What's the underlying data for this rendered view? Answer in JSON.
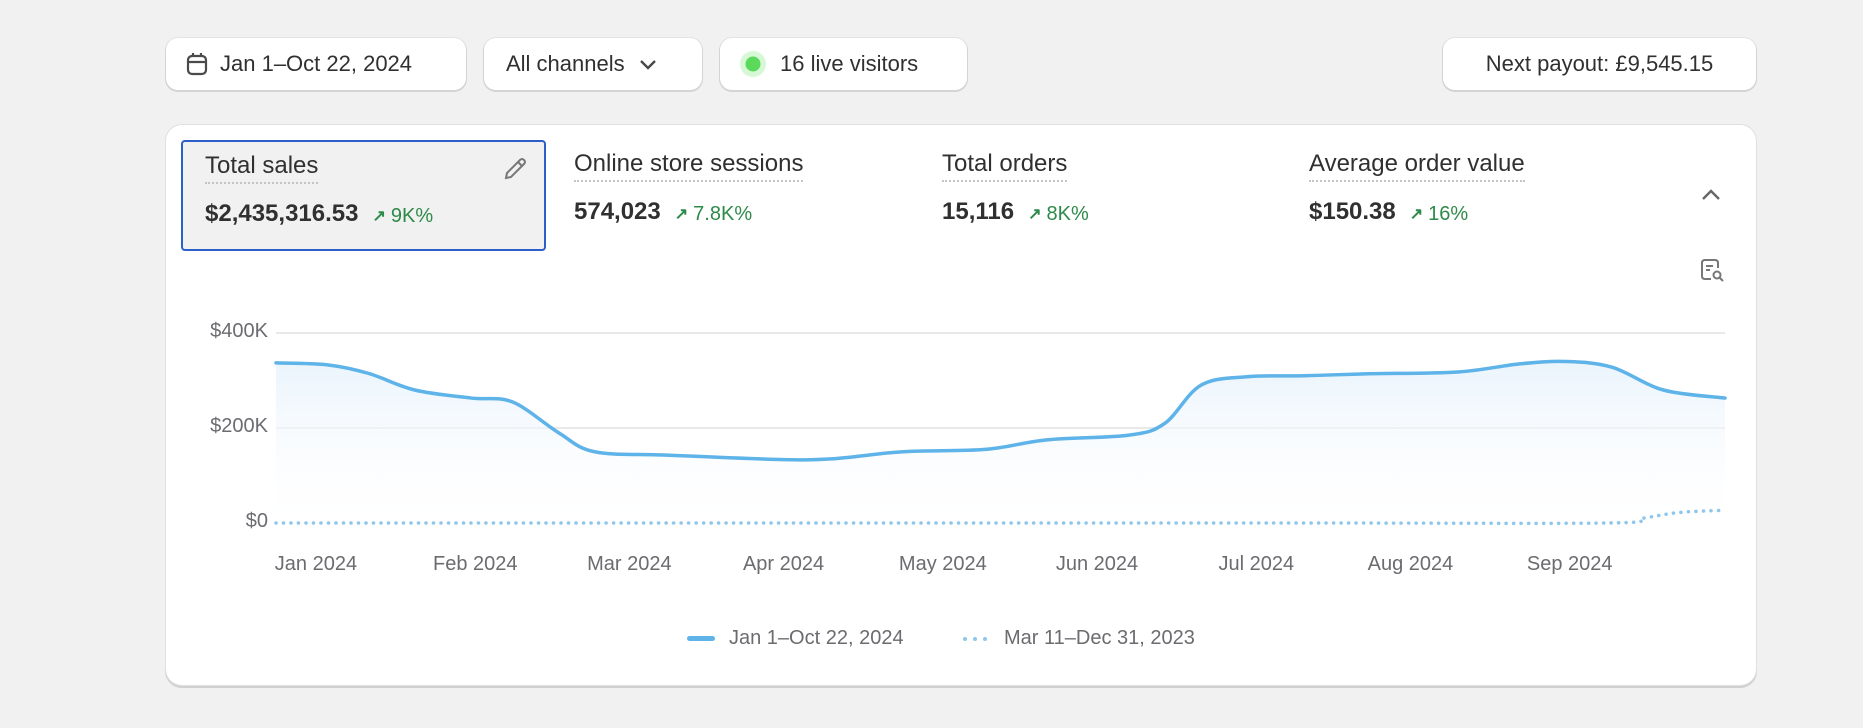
{
  "toolbar": {
    "date_range": "Jan 1–Oct 22, 2024",
    "channels": "All channels",
    "live_visitors": "16 live visitors",
    "payout": "Next payout: £9,545.15",
    "live_color": "#5bd95b"
  },
  "metrics": [
    {
      "title": "Total sales",
      "value": "$2,435,316.53",
      "delta": "9K%",
      "selected": true
    },
    {
      "title": "Online store sessions",
      "value": "574,023",
      "delta": "7.8K%"
    },
    {
      "title": "Total orders",
      "value": "15,116",
      "delta": "8K%"
    },
    {
      "title": "Average order value",
      "value": "$150.38",
      "delta": "16%"
    }
  ],
  "icons": {
    "edit": "pencil-icon",
    "collapse": "chevron-up-icon",
    "explore": "report-search-icon"
  },
  "chart_data": {
    "type": "line",
    "title": "Total sales",
    "xlabel": "",
    "ylabel": "",
    "x_unit": "days since Jan 1, 2024",
    "xlim": [
      0,
      282
    ],
    "ylim": [
      0,
      400000
    ],
    "y_ticks": [
      {
        "value": 0,
        "label": "$0"
      },
      {
        "value": 200000,
        "label": "$200K"
      },
      {
        "value": 400000,
        "label": "$400K"
      }
    ],
    "x_ticks": [
      {
        "value": 7,
        "label": "Jan 2024"
      },
      {
        "value": 38,
        "label": "Feb 2024"
      },
      {
        "value": 68,
        "label": "Mar 2024"
      },
      {
        "value": 98,
        "label": "Apr 2024"
      },
      {
        "value": 129,
        "label": "May 2024"
      },
      {
        "value": 159,
        "label": "Jun 2024"
      },
      {
        "value": 190,
        "label": "Jul 2024"
      },
      {
        "value": 220,
        "label": "Aug 2024"
      },
      {
        "value": 251,
        "label": "Sep 2024"
      }
    ],
    "grid": true,
    "legend_position": "bottom-center",
    "series": [
      {
        "name": "Jan 1–Oct 22, 2024",
        "style": "solid",
        "color": "#5eb3e8",
        "points": [
          [
            0,
            337000
          ],
          [
            10,
            333000
          ],
          [
            18,
            315000
          ],
          [
            27,
            280000
          ],
          [
            38,
            263000
          ],
          [
            46,
            255000
          ],
          [
            55,
            190000
          ],
          [
            62,
            150000
          ],
          [
            76,
            143000
          ],
          [
            97,
            134000
          ],
          [
            108,
            135000
          ],
          [
            122,
            150000
          ],
          [
            138,
            155000
          ],
          [
            150,
            175000
          ],
          [
            166,
            185000
          ],
          [
            173,
            210000
          ],
          [
            180,
            290000
          ],
          [
            189,
            308000
          ],
          [
            200,
            310000
          ],
          [
            212,
            314000
          ],
          [
            230,
            318000
          ],
          [
            242,
            335000
          ],
          [
            251,
            340000
          ],
          [
            260,
            328000
          ],
          [
            270,
            280000
          ],
          [
            282,
            263000
          ]
        ]
      },
      {
        "name": "Mar 11–Dec 31, 2023",
        "style": "dotted",
        "color": "#8fc6ec",
        "points": [
          [
            0,
            0
          ],
          [
            100,
            0
          ],
          [
            200,
            0
          ],
          [
            259,
            0
          ],
          [
            266,
            10000
          ],
          [
            273,
            22000
          ],
          [
            282,
            27000
          ]
        ]
      }
    ]
  }
}
